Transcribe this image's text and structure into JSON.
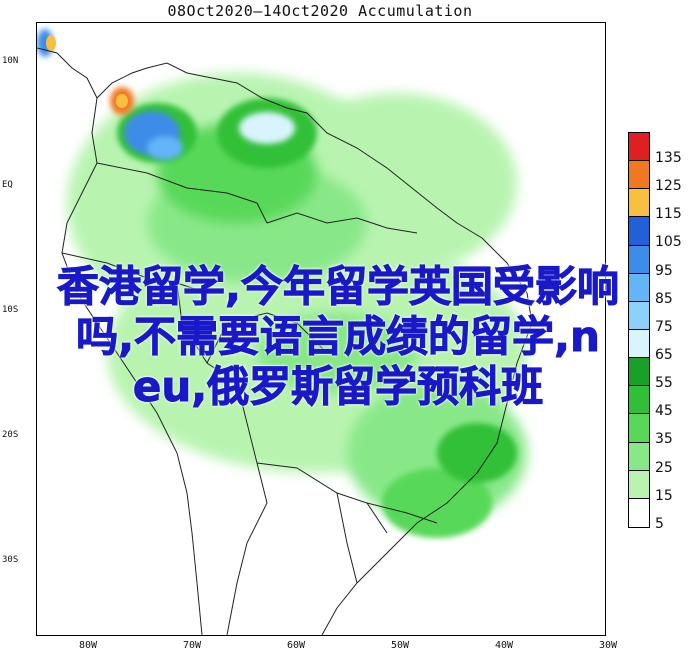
{
  "title": "08Oct2020—14Oct2020 Accumulation",
  "lat_labels": [
    "10N",
    "EQ",
    "10S",
    "20S",
    "30S"
  ],
  "lon_labels": [
    "80W",
    "70W",
    "60W",
    "50W",
    "40W",
    "30W"
  ],
  "legend": {
    "labels": [
      "135",
      "125",
      "115",
      "105",
      "95",
      "85",
      "75",
      "65",
      "55",
      "45",
      "35",
      "25",
      "15",
      "5"
    ],
    "colors": [
      "#e02020",
      "#f07820",
      "#f8c040",
      "#2060d8",
      "#3c8ce8",
      "#64b4f8",
      "#8cd0fc",
      "#d8f4fc",
      "#18a028",
      "#30c038",
      "#58d858",
      "#88e888",
      "#b8f4b0",
      "#ffffff"
    ]
  },
  "overlay_text": [
    "香港留学,今年留学英国受影响",
    "吗,不需要语言成绩的留学,n",
    "eu,俄罗斯留学预科班"
  ]
}
